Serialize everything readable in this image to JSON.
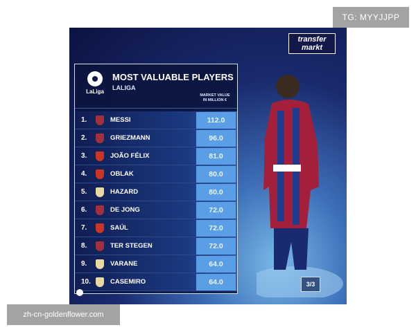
{
  "watermark_tag": "TG: MYYJJPP",
  "site_label": "zh-cn-goldenflower.com",
  "brand": {
    "line1": "transfer",
    "line2": "markt"
  },
  "league_logo_text": "LaLiga",
  "title": "MOST VALUABLE PLAYERS",
  "subtitle": "LALIGA",
  "column_header": {
    "line1": "MARKET VALUE",
    "line2": "IN MILLION €"
  },
  "players": [
    {
      "rank": "1.",
      "name": "MESSI",
      "value": "112.0",
      "club": "barcelona"
    },
    {
      "rank": "2.",
      "name": "GRIEZMANN",
      "value": "96.0",
      "club": "barcelona"
    },
    {
      "rank": "3.",
      "name": "JOÃO FÉLIX",
      "value": "81.0",
      "club": "atletico"
    },
    {
      "rank": "4.",
      "name": "OBLAK",
      "value": "80.0",
      "club": "atletico"
    },
    {
      "rank": "5.",
      "name": "HAZARD",
      "value": "80.0",
      "club": "real-madrid"
    },
    {
      "rank": "6.",
      "name": "DE JONG",
      "value": "72.0",
      "club": "barcelona"
    },
    {
      "rank": "7.",
      "name": "SAÚL",
      "value": "72.0",
      "club": "atletico"
    },
    {
      "rank": "8.",
      "name": "TER STEGEN",
      "value": "72.0",
      "club": "barcelona"
    },
    {
      "rank": "9.",
      "name": "VARANE",
      "value": "64.0",
      "club": "real-madrid"
    },
    {
      "rank": "10.",
      "name": "CASEMIRO",
      "value": "64.0",
      "club": "real-madrid"
    }
  ],
  "club_colors": {
    "barcelona": "#a4303f",
    "atletico": "#cb3524",
    "real-madrid": "#e8d9a0"
  },
  "page_indicator": "3/3"
}
